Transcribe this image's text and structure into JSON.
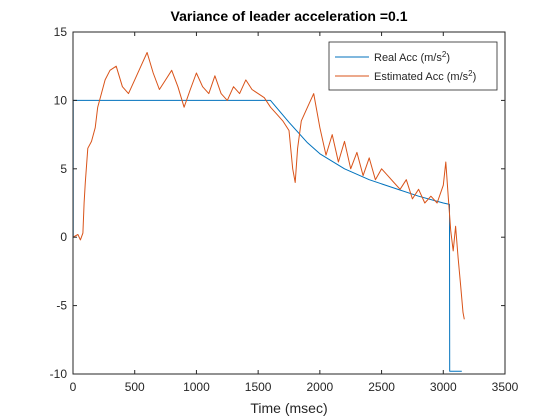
{
  "chart_data": {
    "type": "line",
    "title": "Variance of leader acceleration =0.1",
    "xlabel": "Time (msec)",
    "ylabel": "",
    "xlim": [
      0,
      3500
    ],
    "ylim": [
      -10,
      15
    ],
    "xticks": [
      0,
      500,
      1000,
      1500,
      2000,
      2500,
      3000,
      3500
    ],
    "yticks": [
      -10,
      -5,
      0,
      5,
      10,
      15
    ],
    "grid": false,
    "legend_position": "top-right",
    "legend_entries": [
      {
        "name_prefix": "Real Acc (m/s",
        "superscript": "2",
        "suffix": ")",
        "color": "#0072bd"
      },
      {
        "name_prefix": "Estimated Acc (m/s",
        "superscript": "2",
        "suffix": ")",
        "color": "#d95319"
      }
    ],
    "series": [
      {
        "color": "#0072bd",
        "x": [
          0,
          2,
          2,
          1600,
          1750,
          1900,
          2000,
          2200,
          2400,
          2600,
          2800,
          3000,
          3050,
          3052,
          3150
        ],
        "y": [
          0,
          0,
          10,
          10,
          8.4,
          6.9,
          6.1,
          5.0,
          4.2,
          3.6,
          3.0,
          2.5,
          2.4,
          -9.8,
          -9.8
        ]
      },
      {
        "color": "#d95319",
        "x": [
          0,
          40,
          60,
          80,
          90,
          100,
          120,
          150,
          180,
          200,
          230,
          260,
          300,
          350,
          400,
          450,
          500,
          550,
          600,
          650,
          700,
          750,
          800,
          850,
          900,
          950,
          1000,
          1050,
          1100,
          1150,
          1200,
          1250,
          1300,
          1350,
          1400,
          1450,
          1500,
          1550,
          1600,
          1650,
          1700,
          1750,
          1780,
          1800,
          1820,
          1850,
          1900,
          1950,
          2000,
          2050,
          2100,
          2150,
          2200,
          2250,
          2300,
          2350,
          2400,
          2450,
          2500,
          2550,
          2600,
          2650,
          2700,
          2750,
          2800,
          2850,
          2900,
          2950,
          3000,
          3020,
          3040,
          3060,
          3080,
          3100,
          3120,
          3140,
          3160,
          3170
        ],
        "y": [
          0,
          0.2,
          -0.2,
          0.3,
          2.5,
          4.0,
          6.5,
          7.0,
          8.0,
          9.5,
          10.5,
          11.5,
          12.2,
          12.5,
          11.0,
          10.5,
          11.5,
          12.5,
          13.5,
          12.0,
          10.8,
          11.5,
          12.2,
          11.0,
          9.5,
          10.8,
          12.0,
          11.0,
          10.5,
          11.8,
          10.5,
          10.0,
          11.0,
          10.5,
          11.5,
          10.8,
          10.5,
          10.2,
          9.5,
          9.0,
          8.5,
          7.8,
          5.0,
          4.0,
          6.5,
          8.5,
          9.5,
          10.5,
          8.0,
          6.0,
          7.5,
          5.5,
          7.0,
          5.0,
          6.2,
          4.5,
          5.8,
          4.2,
          5.0,
          4.5,
          4.0,
          3.5,
          4.2,
          2.8,
          3.5,
          2.5,
          3.0,
          2.5,
          3.8,
          5.5,
          3.0,
          0.5,
          -1.0,
          0.8,
          -1.5,
          -3.5,
          -5.5,
          -6.0
        ]
      }
    ]
  }
}
